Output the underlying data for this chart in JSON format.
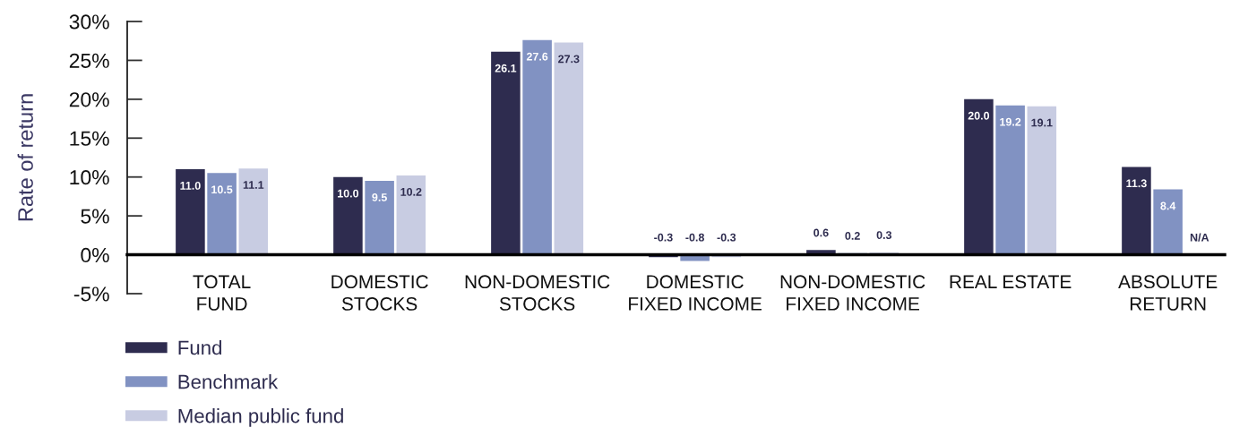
{
  "chart_data": {
    "type": "bar",
    "ylabel": "Rate of return",
    "categories": [
      "TOTAL\nFUND",
      "DOMESTIC\nSTOCKS",
      "NON-DOMESTIC\nSTOCKS",
      "DOMESTIC\nFIXED INCOME",
      "NON-DOMESTIC\nFIXED INCOME",
      "REAL ESTATE",
      "ABSOLUTE\nRETURN"
    ],
    "series": [
      {
        "name": "Fund",
        "color": "#2e2c4f",
        "values": [
          11.0,
          10.0,
          26.1,
          -0.3,
          0.6,
          20.0,
          11.3
        ],
        "value_labels": [
          "11.0",
          "10.0",
          "26.1",
          "-0.3",
          "0.6",
          "20.0",
          "11.3"
        ]
      },
      {
        "name": "Benchmark",
        "color": "#8192c2",
        "values": [
          10.5,
          9.5,
          27.6,
          -0.8,
          0.2,
          19.2,
          8.4
        ],
        "value_labels": [
          "10.5",
          "9.5",
          "27.6",
          "-0.8",
          "0.2",
          "19.2",
          "8.4"
        ]
      },
      {
        "name": "Median public fund",
        "color": "#c8cce2",
        "values": [
          11.1,
          10.2,
          27.3,
          -0.3,
          0.3,
          19.1,
          null
        ],
        "value_labels": [
          "11.1",
          "10.2",
          "27.3",
          "-0.3",
          "0.3",
          "19.1",
          "N/A"
        ]
      }
    ],
    "ylim": [
      -5,
      30
    ],
    "yticks": [
      {
        "value": -5,
        "label": "-5%"
      },
      {
        "value": 0,
        "label": "0%"
      },
      {
        "value": 5,
        "label": "5%"
      },
      {
        "value": 10,
        "label": "10%"
      },
      {
        "value": 15,
        "label": "15%"
      },
      {
        "value": 20,
        "label": "20%"
      },
      {
        "value": 25,
        "label": "25%"
      },
      {
        "value": 30,
        "label": "30%"
      }
    ],
    "grid": false,
    "legend": "bottom left"
  }
}
